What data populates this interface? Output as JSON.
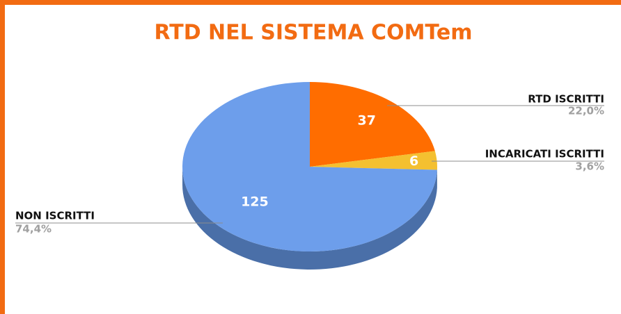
{
  "chart_data": {
    "type": "pie",
    "title": "RTD NEL SISTEMA COMTem",
    "categories": [
      "RTD ISCRITTI",
      "INCARICATI ISCRITTI",
      "NON ISCRITTI"
    ],
    "values": [
      37,
      6,
      125
    ],
    "percent_labels": [
      "22,0%",
      "3,6%",
      "74,4%"
    ],
    "colors": [
      "#ff6d00",
      "#f4c030",
      "#6d9eeb"
    ],
    "side_colors": [
      "#b84e00",
      "#b08a20",
      "#4a6fa8"
    ]
  }
}
